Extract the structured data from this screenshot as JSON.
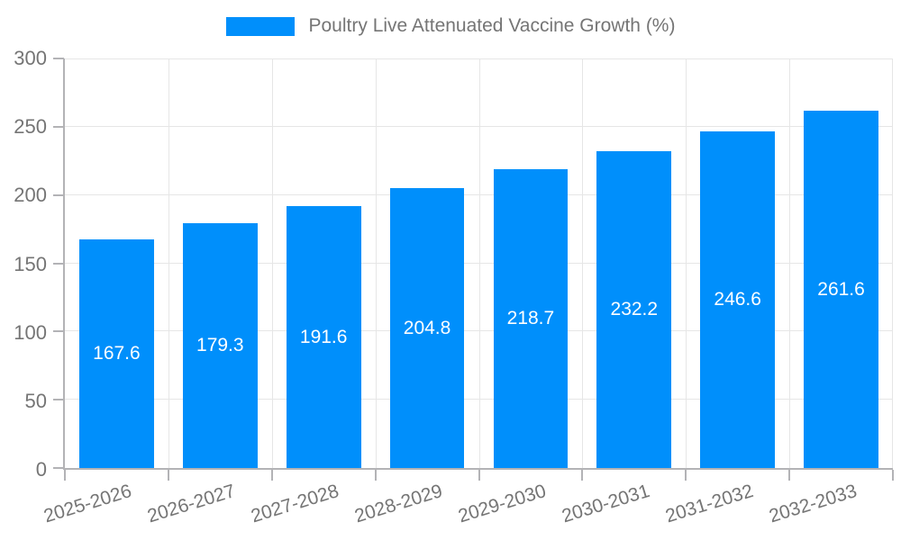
{
  "legend": {
    "label": "Poultry Live Attenuated Vaccine Growth (%)"
  },
  "chart_data": {
    "type": "bar",
    "title": "Poultry Live Attenuated Vaccine Growth (%)",
    "categories": [
      "2025-2026",
      "2026-2027",
      "2027-2028",
      "2028-2029",
      "2029-2030",
      "2030-2031",
      "2031-2032",
      "2032-2033"
    ],
    "values": [
      167.6,
      179.3,
      191.6,
      204.8,
      218.7,
      232.2,
      246.6,
      261.6
    ],
    "xlabel": "",
    "ylabel": "",
    "ylim": [
      0,
      300
    ],
    "yticks": [
      0,
      50,
      100,
      150,
      200,
      250,
      300
    ],
    "grid": true,
    "legend_position": "top",
    "colors": {
      "bar": "#008FFB",
      "bar_value_label": "#ffffff",
      "axis_line": "#b3b3b6",
      "gridline": "#e6e6e6",
      "tick_label": "#757575"
    }
  }
}
